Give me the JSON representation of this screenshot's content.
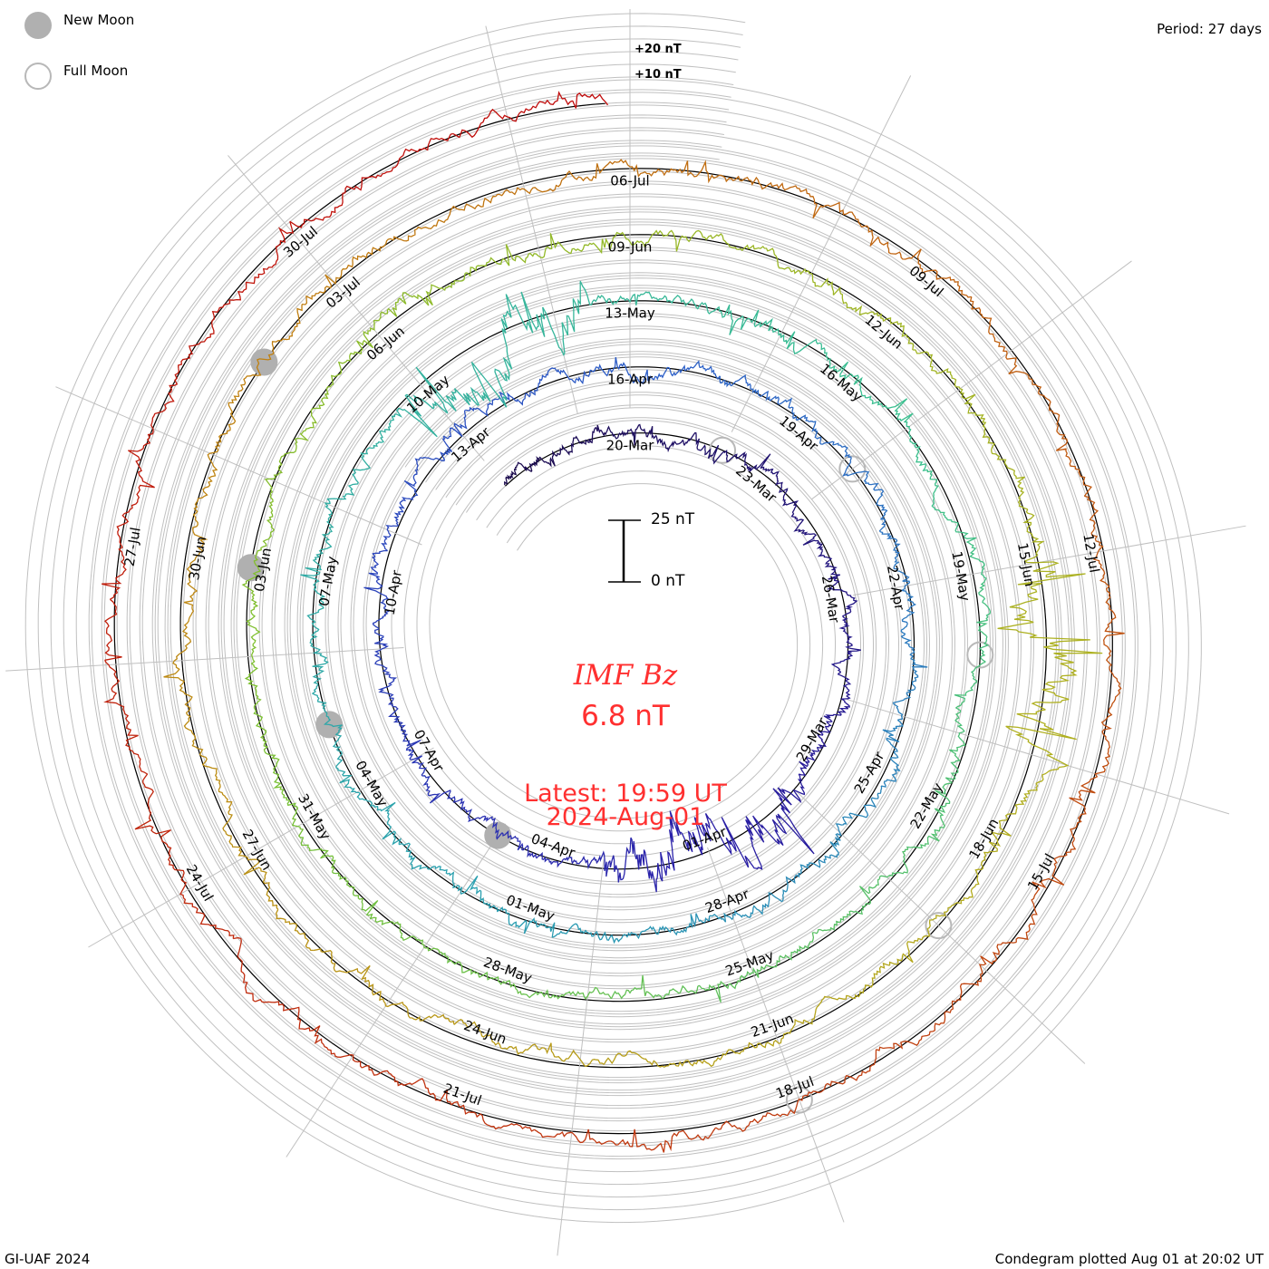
{
  "chart_data": {
    "type": "line",
    "subtype": "condegram-spiral",
    "title": "IMF Bz",
    "current_value": "6.8 nT",
    "latest_label": "Latest: 19:59 UT",
    "latest_date": "2024-Aug-01",
    "period_label": "Period: 27 days",
    "period_days": 27,
    "start_date": "2024-03-17",
    "end_date": "2024-08-01T19:59",
    "scale_bar": {
      "top": "25 nT",
      "bottom": "0 nT",
      "span_nT": 25
    },
    "offset_labels": [
      "+20 nT",
      "+10 nT"
    ],
    "grid_step_nT": 5,
    "date_labels": [
      "20-Mar",
      "23-Mar",
      "26-Mar",
      "29-Mar",
      "01-Apr",
      "04-Apr",
      "07-Apr",
      "10-Apr",
      "13-Apr",
      "16-Apr",
      "19-Apr",
      "22-Apr",
      "25-Apr",
      "28-Apr",
      "01-May",
      "04-May",
      "07-May",
      "10-May",
      "13-May",
      "16-May",
      "19-May",
      "22-May",
      "25-May",
      "28-May",
      "31-May",
      "03-Jun",
      "06-Jun",
      "09-Jun",
      "12-Jun",
      "15-Jun",
      "18-Jun",
      "21-Jun",
      "24-Jun",
      "27-Jun",
      "30-Jun",
      "03-Jul",
      "06-Jul",
      "09-Jul",
      "12-Jul",
      "15-Jul",
      "18-Jul",
      "21-Jul",
      "24-Jul",
      "27-Jul",
      "30-Jul"
    ],
    "new_moon_day_offsets": [
      19,
      49,
      78,
      107
    ],
    "full_moon_day_offsets": [
      5,
      34,
      64,
      94,
      123
    ],
    "color_stops": [
      "#1a0a4a",
      "#2a1fa8",
      "#2d5fc8",
      "#2aa0b0",
      "#3cc090",
      "#7cc030",
      "#b0b020",
      "#c08010",
      "#c04010",
      "#c00a0a"
    ]
  },
  "legend": {
    "new_moon": "New Moon",
    "full_moon": "Full Moon"
  },
  "footer": {
    "left": "GI-UAF 2024",
    "right": "Condegram plotted Aug 01 at 20:02 UT"
  }
}
